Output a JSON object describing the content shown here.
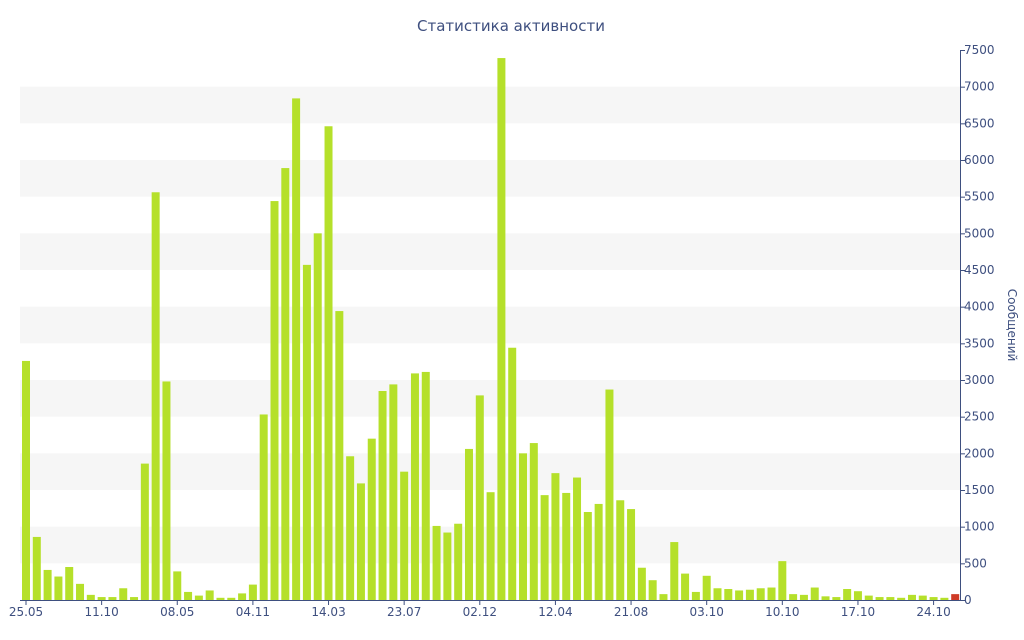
{
  "chart_data": {
    "type": "bar",
    "title": "Статистика активности",
    "xlabel": "",
    "ylabel": "Сообщений",
    "ylim": [
      0,
      7500
    ],
    "y_ticks": [
      0,
      500,
      1000,
      1500,
      2000,
      2500,
      3000,
      3500,
      4000,
      4500,
      5000,
      5500,
      6000,
      6500,
      7000,
      7500
    ],
    "y_axis_side": "right",
    "grid": "alternating horizontal bands",
    "x_tick_labels": [
      {
        "label": "25.05",
        "index": 0
      },
      {
        "label": "11.10",
        "index": 7
      },
      {
        "label": "08.05",
        "index": 14
      },
      {
        "label": "04.11",
        "index": 21
      },
      {
        "label": "14.03",
        "index": 28
      },
      {
        "label": "23.07",
        "index": 35
      },
      {
        "label": "02.12",
        "index": 42
      },
      {
        "label": "12.04",
        "index": 49
      },
      {
        "label": "21.08",
        "index": 56
      },
      {
        "label": "03.10",
        "index": 63
      },
      {
        "label": "10.10",
        "index": 70
      },
      {
        "label": "17.10",
        "index": 77
      },
      {
        "label": "24.10",
        "index": 84
      }
    ],
    "series": [
      {
        "color": "#b5e02a",
        "values": [
          3260,
          860,
          410,
          320,
          450,
          220,
          70,
          40,
          40,
          160,
          40,
          1860,
          5560,
          2980,
          390,
          110,
          60,
          130,
          30,
          30,
          90,
          210,
          2530,
          5440,
          5890,
          6840,
          4570,
          5000,
          6460,
          3940,
          1960,
          1590,
          2200,
          2850,
          2940,
          1750,
          3090,
          3110,
          1010,
          920,
          1040,
          2060,
          2790,
          1470,
          7390,
          3440,
          2000,
          2140,
          1430,
          1730,
          1460,
          1670,
          1200,
          1310,
          2870,
          1360,
          1240,
          440,
          270,
          80,
          790,
          360,
          110,
          330,
          160,
          150,
          130,
          140,
          160,
          170,
          530,
          80,
          70,
          170,
          50,
          40,
          150,
          120,
          60,
          40,
          40,
          30,
          70,
          60,
          40,
          30,
          80
        ]
      }
    ],
    "last_bar_color": "#cf3b26"
  }
}
